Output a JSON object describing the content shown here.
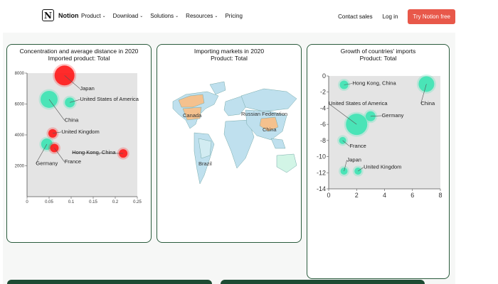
{
  "nav": {
    "brand": "Notion",
    "logo_letter": "N",
    "menu": [
      {
        "label": "Product",
        "has_dropdown": true
      },
      {
        "label": "Download",
        "has_dropdown": true
      },
      {
        "label": "Solutions",
        "has_dropdown": true
      },
      {
        "label": "Resources",
        "has_dropdown": true
      },
      {
        "label": "Pricing",
        "has_dropdown": false
      }
    ],
    "contact": "Contact sales",
    "login": "Log in",
    "cta": "Try Notion free",
    "chevron": "⌄"
  },
  "colors": {
    "card_border": "#2a5b3c",
    "teal": "#3ee3b4",
    "red": "#ff1a1a",
    "cta": "#e8584a",
    "plot_bg": "#e4e4e4"
  },
  "cards": {
    "left": {
      "title_line1": "Concentration and average distance in 2020",
      "title_line2": "Imported product: Total"
    },
    "middle": {
      "title_line1": "Importing markets in 2020",
      "title_line2": "Product: Total"
    },
    "right": {
      "title_line1": "Growth of countries' imports",
      "title_line2": "Product: Total"
    }
  },
  "chart_data": [
    {
      "type": "scatter",
      "title": "Concentration and average distance in 2020",
      "subtitle": "Imported product: Total",
      "xlim": [
        0,
        0.25
      ],
      "ylim": [
        0,
        8000
      ],
      "x_ticks": [
        "0",
        "0.05",
        "0.1",
        "0.15",
        "0.2",
        "0.25"
      ],
      "y_ticks": [
        "2000",
        "4000",
        "6000",
        "8000"
      ],
      "points": [
        {
          "label": "Japan",
          "x": 0.085,
          "y": 7850,
          "r": 14,
          "color": "red",
          "lx": 0.12,
          "ly": 6900
        },
        {
          "label": "United States of America",
          "x": 0.097,
          "y": 6100,
          "r": 7,
          "color": "teal",
          "lx": 0.12,
          "ly": 6200
        },
        {
          "label": "China",
          "x": 0.05,
          "y": 6300,
          "r": 12,
          "color": "teal",
          "lx": 0.085,
          "ly": 4850
        },
        {
          "label": "United Kingdom",
          "x": 0.058,
          "y": 4100,
          "r": 6,
          "color": "red",
          "lx": 0.078,
          "ly": 4100
        },
        {
          "label": "Germany",
          "x": 0.045,
          "y": 3400,
          "r": 8,
          "color": "teal",
          "lx": 0.02,
          "ly": 2050
        },
        {
          "label": "France",
          "x": 0.062,
          "y": 3150,
          "r": 6,
          "color": "red",
          "lx": 0.085,
          "ly": 2150
        },
        {
          "label": "Hong Kong, China",
          "x": 0.218,
          "y": 2800,
          "r": 6,
          "color": "red",
          "lx": 0.102,
          "ly": 2750
        }
      ]
    },
    {
      "type": "map",
      "title": "Importing markets in 2020",
      "subtitle": "Product: Total",
      "labels": [
        "Canada",
        "Russian Federation",
        "China",
        "Brazil"
      ]
    },
    {
      "type": "scatter",
      "title": "Growth of countries' imports",
      "subtitle": "Product: Total",
      "xlim": [
        0,
        8
      ],
      "ylim": [
        -14,
        0
      ],
      "x_ticks": [
        "0",
        "2",
        "4",
        "6",
        "8"
      ],
      "y_ticks": [
        "0",
        "-2",
        "-4",
        "-6",
        "-8",
        "-10",
        "-12",
        "-14"
      ],
      "points": [
        {
          "label": "Hong Kong, China",
          "x": 1.1,
          "y": -1.1,
          "r": 6,
          "color": "teal",
          "lx": 1.7,
          "ly": -1.1
        },
        {
          "label": "China",
          "x": 7.0,
          "y": -1.0,
          "r": 11,
          "color": "teal",
          "lx": 6.6,
          "ly": -3.6
        },
        {
          "label": "United States of America",
          "x": 2.0,
          "y": -6.0,
          "r": 15,
          "color": "teal",
          "lx": 0.0,
          "ly": -3.6
        },
        {
          "label": "Germany",
          "x": 3.0,
          "y": -5.0,
          "r": 7,
          "color": "teal",
          "lx": 3.8,
          "ly": -5.1
        },
        {
          "label": "France",
          "x": 1.0,
          "y": -8.0,
          "r": 5,
          "color": "teal",
          "lx": 1.5,
          "ly": -8.9
        },
        {
          "label": "Japan",
          "x": 1.1,
          "y": -11.8,
          "r": 5,
          "color": "teal",
          "lx": 1.3,
          "ly": -10.6
        },
        {
          "label": "United Kingdom",
          "x": 2.1,
          "y": -11.8,
          "r": 5,
          "color": "teal",
          "lx": 2.5,
          "ly": -11.5
        }
      ]
    }
  ]
}
